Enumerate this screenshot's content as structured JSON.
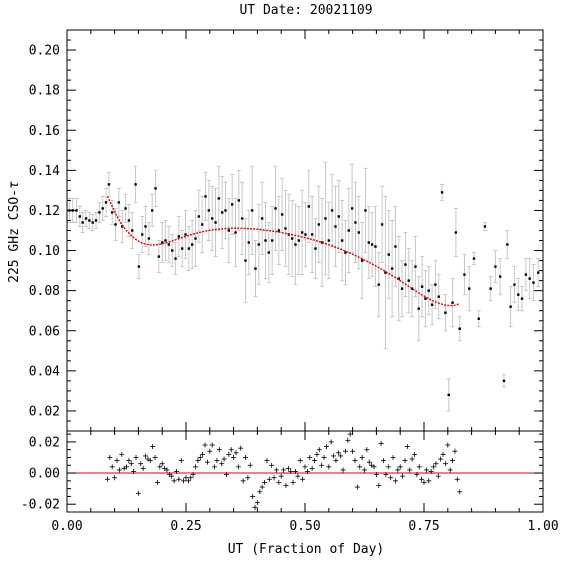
{
  "chart_data": {
    "type": "scatter",
    "title": "UT Date: 20021109",
    "xlabel": "UT (Fraction of Day)",
    "ylabel": "225 GHz CSO-",
    "ylabel_symbol": "τ",
    "xlim": [
      0,
      1
    ],
    "ylim_main": [
      0.01,
      0.21
    ],
    "ylim_resid": [
      -0.025,
      0.027
    ],
    "x_ticks": [
      "0.00",
      "0.25",
      "0.50",
      "0.75",
      "1.00"
    ],
    "x_tick_values": [
      0,
      0.25,
      0.5,
      0.75,
      1.0
    ],
    "y_ticks_main": [
      "0.02",
      "0.04",
      "0.06",
      "0.08",
      "0.10",
      "0.12",
      "0.14",
      "0.16",
      "0.18",
      "0.20"
    ],
    "y_tick_values_main": [
      0.02,
      0.04,
      0.06,
      0.08,
      0.1,
      0.12,
      0.14,
      0.16,
      0.18,
      0.2
    ],
    "y_ticks_resid": [
      "-0.02",
      "0.00",
      "0.02"
    ],
    "y_tick_values_resid": [
      -0.02,
      0,
      0.02
    ],
    "measurements": [
      [
        0.005,
        0.12,
        0.006
      ],
      [
        0.012,
        0.12,
        0.006
      ],
      [
        0.02,
        0.12,
        0.006
      ],
      [
        0.027,
        0.117,
        0.005
      ],
      [
        0.033,
        0.114,
        0.005
      ],
      [
        0.04,
        0.116,
        0.004
      ],
      [
        0.047,
        0.115,
        0.004
      ],
      [
        0.054,
        0.114,
        0.004
      ],
      [
        0.061,
        0.115,
        0.004
      ],
      [
        0.068,
        0.119,
        0.005
      ],
      [
        0.075,
        0.121,
        0.006
      ],
      [
        0.082,
        0.124,
        0.007
      ],
      [
        0.088,
        0.133,
        0.006
      ],
      [
        0.095,
        0.119,
        0.006
      ],
      [
        0.102,
        0.113,
        0.008
      ],
      [
        0.109,
        0.124,
        0.007
      ],
      [
        0.116,
        0.112,
        0.008
      ],
      [
        0.123,
        0.121,
        0.007
      ],
      [
        0.13,
        0.115,
        0.008
      ],
      [
        0.137,
        0.11,
        0.009
      ],
      [
        0.144,
        0.133,
        0.009
      ],
      [
        0.151,
        0.092,
        0.006
      ],
      [
        0.158,
        0.108,
        0.009
      ],
      [
        0.165,
        0.112,
        0.01
      ],
      [
        0.172,
        0.106,
        0.008
      ],
      [
        0.179,
        0.12,
        0.008
      ],
      [
        0.186,
        0.131,
        0.009
      ],
      [
        0.193,
        0.097,
        0.008
      ],
      [
        0.2,
        0.104,
        0.01
      ],
      [
        0.207,
        0.105,
        0.01
      ],
      [
        0.214,
        0.103,
        0.009
      ],
      [
        0.221,
        0.1,
        0.008
      ],
      [
        0.228,
        0.096,
        0.008
      ],
      [
        0.235,
        0.107,
        0.01
      ],
      [
        0.242,
        0.101,
        0.009
      ],
      [
        0.249,
        0.108,
        0.012
      ],
      [
        0.256,
        0.101,
        0.011
      ],
      [
        0.263,
        0.103,
        0.012
      ],
      [
        0.27,
        0.106,
        0.014
      ],
      [
        0.277,
        0.117,
        0.013
      ],
      [
        0.284,
        0.113,
        0.014
      ],
      [
        0.291,
        0.127,
        0.012
      ],
      [
        0.298,
        0.12,
        0.015
      ],
      [
        0.305,
        0.116,
        0.016
      ],
      [
        0.312,
        0.114,
        0.017
      ],
      [
        0.319,
        0.126,
        0.016
      ],
      [
        0.326,
        0.119,
        0.018
      ],
      [
        0.333,
        0.12,
        0.014
      ],
      [
        0.34,
        0.11,
        0.016
      ],
      [
        0.347,
        0.123,
        0.015
      ],
      [
        0.354,
        0.109,
        0.017
      ],
      [
        0.361,
        0.125,
        0.015
      ],
      [
        0.368,
        0.116,
        0.018
      ],
      [
        0.375,
        0.095,
        0.021
      ],
      [
        0.382,
        0.104,
        0.016
      ],
      [
        0.389,
        0.12,
        0.022
      ],
      [
        0.396,
        0.091,
        0.014
      ],
      [
        0.403,
        0.103,
        0.02
      ],
      [
        0.41,
        0.116,
        0.018
      ],
      [
        0.417,
        0.105,
        0.019
      ],
      [
        0.424,
        0.099,
        0.015
      ],
      [
        0.431,
        0.105,
        0.017
      ],
      [
        0.438,
        0.121,
        0.021
      ],
      [
        0.445,
        0.11,
        0.017
      ],
      [
        0.452,
        0.118,
        0.018
      ],
      [
        0.459,
        0.111,
        0.019
      ],
      [
        0.466,
        0.108,
        0.02
      ],
      [
        0.473,
        0.106,
        0.019
      ],
      [
        0.48,
        0.103,
        0.02
      ],
      [
        0.487,
        0.105,
        0.017
      ],
      [
        0.494,
        0.109,
        0.021
      ],
      [
        0.501,
        0.108,
        0.016
      ],
      [
        0.508,
        0.122,
        0.018
      ],
      [
        0.515,
        0.108,
        0.019
      ],
      [
        0.522,
        0.101,
        0.015
      ],
      [
        0.529,
        0.113,
        0.019
      ],
      [
        0.536,
        0.104,
        0.022
      ],
      [
        0.543,
        0.116,
        0.028
      ],
      [
        0.55,
        0.105,
        0.019
      ],
      [
        0.557,
        0.12,
        0.018
      ],
      [
        0.564,
        0.112,
        0.02
      ],
      [
        0.571,
        0.117,
        0.018
      ],
      [
        0.578,
        0.105,
        0.02
      ],
      [
        0.585,
        0.099,
        0.016
      ],
      [
        0.592,
        0.11,
        0.021
      ],
      [
        0.599,
        0.121,
        0.022
      ],
      [
        0.606,
        0.114,
        0.02
      ],
      [
        0.613,
        0.109,
        0.018
      ],
      [
        0.62,
        0.095,
        0.019
      ],
      [
        0.627,
        0.12,
        0.021
      ],
      [
        0.634,
        0.104,
        0.018
      ],
      [
        0.641,
        0.103,
        0.016
      ],
      [
        0.648,
        0.102,
        0.02
      ],
      [
        0.655,
        0.083,
        0.016
      ],
      [
        0.662,
        0.113,
        0.019
      ],
      [
        0.669,
        0.089,
        0.038
      ],
      [
        0.676,
        0.098,
        0.022
      ],
      [
        0.683,
        0.091,
        0.024
      ],
      [
        0.69,
        0.102,
        0.02
      ],
      [
        0.697,
        0.086,
        0.021
      ],
      [
        0.704,
        0.081,
        0.014
      ],
      [
        0.711,
        0.093,
        0.016
      ],
      [
        0.718,
        0.085,
        0.016
      ],
      [
        0.725,
        0.081,
        0.014
      ],
      [
        0.732,
        0.092,
        0.015
      ],
      [
        0.739,
        0.071,
        0.016
      ],
      [
        0.746,
        0.082,
        0.015
      ],
      [
        0.753,
        0.076,
        0.014
      ],
      [
        0.76,
        0.08,
        0.012
      ],
      [
        0.767,
        0.073,
        0.01
      ],
      [
        0.774,
        0.083,
        0.012
      ],
      [
        0.781,
        0.077,
        0.011
      ],
      [
        0.788,
        0.129,
        0.004
      ],
      [
        0.795,
        0.069,
        0.009
      ],
      [
        0.802,
        0.028,
        0.008
      ],
      [
        0.81,
        0.074,
        0.012
      ],
      [
        0.817,
        0.109,
        0.012
      ],
      [
        0.825,
        0.061,
        0.006
      ],
      [
        0.835,
        0.088,
        0.01
      ],
      [
        0.845,
        0.081,
        0.011
      ],
      [
        0.855,
        0.096,
        0.003
      ],
      [
        0.865,
        0.066,
        0.004
      ],
      [
        0.878,
        0.112,
        0.002
      ],
      [
        0.89,
        0.081,
        0.006
      ],
      [
        0.9,
        0.092,
        0.008
      ],
      [
        0.91,
        0.087,
        0.009
      ],
      [
        0.918,
        0.035,
        0.003
      ],
      [
        0.925,
        0.103,
        0.007
      ],
      [
        0.932,
        0.072,
        0.01
      ],
      [
        0.94,
        0.083,
        0.009
      ],
      [
        0.948,
        0.078,
        0.008
      ],
      [
        0.956,
        0.076,
        0.006
      ],
      [
        0.964,
        0.088,
        0.008
      ],
      [
        0.972,
        0.086,
        0.01
      ],
      [
        0.98,
        0.084,
        0.009
      ],
      [
        0.99,
        0.089,
        0.007
      ]
    ],
    "fit_curve": [
      [
        0.085,
        0.127
      ],
      [
        0.095,
        0.122
      ],
      [
        0.105,
        0.117
      ],
      [
        0.115,
        0.113
      ],
      [
        0.125,
        0.11
      ],
      [
        0.135,
        0.1075
      ],
      [
        0.145,
        0.1055
      ],
      [
        0.155,
        0.104
      ],
      [
        0.165,
        0.1032
      ],
      [
        0.175,
        0.1028
      ],
      [
        0.185,
        0.1028
      ],
      [
        0.195,
        0.1031
      ],
      [
        0.205,
        0.1036
      ],
      [
        0.215,
        0.1043
      ],
      [
        0.225,
        0.1051
      ],
      [
        0.235,
        0.1059
      ],
      [
        0.245,
        0.1067
      ],
      [
        0.255,
        0.1075
      ],
      [
        0.265,
        0.1082
      ],
      [
        0.275,
        0.1088
      ],
      [
        0.285,
        0.1094
      ],
      [
        0.295,
        0.1099
      ],
      [
        0.305,
        0.1103
      ],
      [
        0.315,
        0.1106
      ],
      [
        0.325,
        0.1108
      ],
      [
        0.335,
        0.111
      ],
      [
        0.345,
        0.1111
      ],
      [
        0.355,
        0.1111
      ],
      [
        0.365,
        0.1111
      ],
      [
        0.375,
        0.111
      ],
      [
        0.385,
        0.1109
      ],
      [
        0.395,
        0.1107
      ],
      [
        0.405,
        0.1105
      ],
      [
        0.415,
        0.1102
      ],
      [
        0.425,
        0.1099
      ],
      [
        0.435,
        0.1096
      ],
      [
        0.445,
        0.1092
      ],
      [
        0.455,
        0.1088
      ],
      [
        0.465,
        0.1083
      ],
      [
        0.475,
        0.1078
      ],
      [
        0.485,
        0.1073
      ],
      [
        0.495,
        0.1067
      ],
      [
        0.505,
        0.1061
      ],
      [
        0.515,
        0.1055
      ],
      [
        0.525,
        0.1048
      ],
      [
        0.535,
        0.1041
      ],
      [
        0.545,
        0.1033
      ],
      [
        0.555,
        0.1025
      ],
      [
        0.565,
        0.1016
      ],
      [
        0.575,
        0.1007
      ],
      [
        0.585,
        0.0997
      ],
      [
        0.595,
        0.0987
      ],
      [
        0.605,
        0.0976
      ],
      [
        0.615,
        0.0965
      ],
      [
        0.625,
        0.0953
      ],
      [
        0.635,
        0.0941
      ],
      [
        0.645,
        0.0928
      ],
      [
        0.655,
        0.0915
      ],
      [
        0.665,
        0.0901
      ],
      [
        0.675,
        0.0887
      ],
      [
        0.685,
        0.0872
      ],
      [
        0.695,
        0.0857
      ],
      [
        0.705,
        0.0842
      ],
      [
        0.715,
        0.0826
      ],
      [
        0.725,
        0.081
      ],
      [
        0.735,
        0.0795
      ],
      [
        0.745,
        0.078
      ],
      [
        0.755,
        0.0766
      ],
      [
        0.765,
        0.0753
      ],
      [
        0.775,
        0.0743
      ],
      [
        0.785,
        0.0734
      ],
      [
        0.795,
        0.0728
      ],
      [
        0.805,
        0.0725
      ],
      [
        0.815,
        0.0727
      ],
      [
        0.825,
        0.0735
      ]
    ],
    "residuals": [
      [
        0.085,
        -0.004
      ],
      [
        0.09,
        0.01
      ],
      [
        0.095,
        0.004
      ],
      [
        0.1,
        -0.003
      ],
      [
        0.105,
        0.008
      ],
      [
        0.11,
        0.002
      ],
      [
        0.115,
        0.012
      ],
      [
        0.12,
        0.003
      ],
      [
        0.125,
        0.004
      ],
      [
        0.13,
        0.008
      ],
      [
        0.135,
        0.006
      ],
      [
        0.14,
        0.001
      ],
      [
        0.145,
        0.01
      ],
      [
        0.15,
        -0.013
      ],
      [
        0.155,
        0.006
      ],
      [
        0.16,
        0.003
      ],
      [
        0.165,
        0.011
      ],
      [
        0.17,
        0.009
      ],
      [
        0.175,
        0.008
      ],
      [
        0.18,
        0.017
      ],
      [
        0.185,
        0.01
      ],
      [
        0.19,
        -0.006
      ],
      [
        0.195,
        0.004
      ],
      [
        0.2,
        0.006
      ],
      [
        0.205,
        0.003
      ],
      [
        0.21,
        0.002
      ],
      [
        0.215,
        -0.001
      ],
      [
        0.22,
        -0.002
      ],
      [
        0.225,
        -0.005
      ],
      [
        0.23,
        0.001
      ],
      [
        0.235,
        -0.004
      ],
      [
        0.24,
        0.008
      ],
      [
        0.245,
        -0.005
      ],
      [
        0.25,
        -0.003
      ],
      [
        0.255,
        -0.005
      ],
      [
        0.26,
        -0.003
      ],
      [
        0.265,
        -0.001
      ],
      [
        0.27,
        0.004
      ],
      [
        0.275,
        0.008
      ],
      [
        0.28,
        0.01
      ],
      [
        0.285,
        0.012
      ],
      [
        0.29,
        0.018
      ],
      [
        0.295,
        0.007
      ],
      [
        0.3,
        0.014
      ],
      [
        0.305,
        0.018
      ],
      [
        0.31,
        0.004
      ],
      [
        0.315,
        0.008
      ],
      [
        0.32,
        0.015
      ],
      [
        0.325,
        0.006
      ],
      [
        0.33,
        0.009
      ],
      [
        0.335,
        -0.001
      ],
      [
        0.34,
        0.012
      ],
      [
        0.345,
        0.015
      ],
      [
        0.35,
        0.01
      ],
      [
        0.355,
        0.013
      ],
      [
        0.36,
        0.004
      ],
      [
        0.365,
        0.016
      ],
      [
        0.37,
        -0.005
      ],
      [
        0.375,
        0.01
      ],
      [
        0.38,
        -0.003
      ],
      [
        0.385,
        0.005
      ],
      [
        0.39,
        -0.015
      ],
      [
        0.395,
        -0.022
      ],
      [
        0.4,
        -0.019
      ],
      [
        0.405,
        -0.012
      ],
      [
        0.41,
        -0.009
      ],
      [
        0.415,
        -0.006
      ],
      [
        0.42,
        0.008
      ],
      [
        0.425,
        -0.004
      ],
      [
        0.43,
        0.005
      ],
      [
        0.435,
        -0.003
      ],
      [
        0.44,
        0.002
      ],
      [
        0.445,
        -0.006
      ],
      [
        0.45,
        -0.002
      ],
      [
        0.455,
        0.002
      ],
      [
        0.46,
        -0.008
      ],
      [
        0.465,
        0.003
      ],
      [
        0.47,
        0.001
      ],
      [
        0.475,
        -0.006
      ],
      [
        0.48,
        0.001
      ],
      [
        0.485,
        -0.002
      ],
      [
        0.49,
        0.008
      ],
      [
        0.495,
        -0.004
      ],
      [
        0.5,
        0.004
      ],
      [
        0.505,
        0.001
      ],
      [
        0.51,
        0.01
      ],
      [
        0.515,
        0.003
      ],
      [
        0.52,
        0.008
      ],
      [
        0.525,
        0.012
      ],
      [
        0.53,
        0.015
      ],
      [
        0.535,
        0.005
      ],
      [
        0.54,
        0.01
      ],
      [
        0.545,
        0.017
      ],
      [
        0.55,
        0.004
      ],
      [
        0.555,
        0.02
      ],
      [
        0.56,
        0.011
      ],
      [
        0.565,
        0.008
      ],
      [
        0.57,
        0.013
      ],
      [
        0.575,
        0.011
      ],
      [
        0.58,
        0.002
      ],
      [
        0.585,
        0.014
      ],
      [
        0.59,
        0.021
      ],
      [
        0.595,
        0.025
      ],
      [
        0.6,
        0.014
      ],
      [
        0.605,
        0.008
      ],
      [
        0.61,
        -0.009
      ],
      [
        0.615,
        0.004
      ],
      [
        0.62,
        0.01
      ],
      [
        0.625,
        0.002
      ],
      [
        0.63,
        0.015
      ],
      [
        0.635,
        0.007
      ],
      [
        0.64,
        0.005
      ],
      [
        0.645,
        0.004
      ],
      [
        0.65,
        -0.001
      ],
      [
        0.655,
        -0.008
      ],
      [
        0.66,
        0.019
      ],
      [
        0.665,
        0.008
      ],
      [
        0.67,
        -0.001
      ],
      [
        0.675,
        0.004
      ],
      [
        0.68,
        -0.003
      ],
      [
        0.685,
        0.01
      ],
      [
        0.69,
        -0.005
      ],
      [
        0.695,
        0.002
      ],
      [
        0.7,
        0.004
      ],
      [
        0.705,
        -0.002
      ],
      [
        0.71,
        0.008
      ],
      [
        0.715,
        0.017
      ],
      [
        0.72,
        0.002
      ],
      [
        0.725,
        0.009
      ],
      [
        0.73,
        0.012
      ],
      [
        0.735,
        -0.001
      ],
      [
        0.74,
        0.004
      ],
      [
        0.745,
        -0.004
      ],
      [
        0.75,
        -0.006
      ],
      [
        0.755,
        0.002
      ],
      [
        0.76,
        -0.005
      ],
      [
        0.765,
        0.001
      ],
      [
        0.77,
        0.004
      ],
      [
        0.775,
        0.006
      ],
      [
        0.78,
        -0.002
      ],
      [
        0.785,
        0.009
      ],
      [
        0.79,
        0.012
      ],
      [
        0.795,
        0.006
      ],
      [
        0.8,
        0.018
      ],
      [
        0.805,
        0.002
      ],
      [
        0.81,
        0.008
      ],
      [
        0.815,
        0.014
      ],
      [
        0.82,
        -0.004
      ],
      [
        0.825,
        -0.012
      ]
    ]
  },
  "colors": {
    "fit": "#e00000",
    "zero_line": "#e00000",
    "error_bar": "#c8c8c8",
    "points": "#000000"
  }
}
